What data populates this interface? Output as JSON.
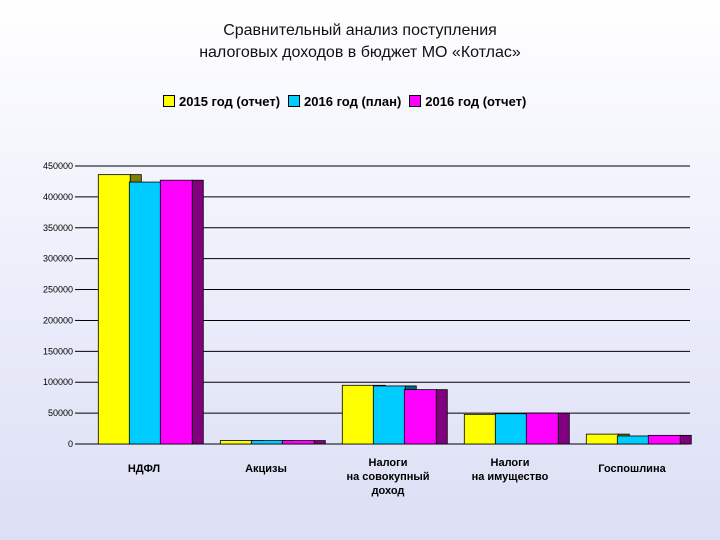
{
  "chart_data": {
    "type": "bar",
    "title": "Сравнительный анализ поступления налоговых доходов в бюджет МО «Котлас»",
    "title_lines": [
      "Сравнительный анализ поступления",
      "налоговых доходов в бюджет МО «Котлас»"
    ],
    "categories": [
      [
        "НДФЛ"
      ],
      [
        "Акцизы"
      ],
      [
        "Налоги",
        "на совокупный",
        "доход"
      ],
      [
        "Налоги",
        "на имущество"
      ],
      [
        "Госпошлина"
      ]
    ],
    "series": [
      {
        "name": "2015 год (отчет)",
        "color": "#ffff00",
        "side_color": "#808000",
        "values": [
          436000,
          5500,
          95000,
          48000,
          16000
        ]
      },
      {
        "name": "2016 год (план)",
        "color": "#00ccff",
        "side_color": "#006680",
        "values": [
          424000,
          5500,
          94000,
          49000,
          13000
        ]
      },
      {
        "name": "2016 год (отчет)",
        "color": "#ff00ff",
        "side_color": "#800080",
        "values": [
          427000,
          5500,
          88000,
          50000,
          14000
        ]
      }
    ],
    "yticks": [
      0,
      50000,
      100000,
      150000,
      200000,
      250000,
      300000,
      350000,
      400000,
      450000
    ],
    "ylim": [
      0,
      450000
    ],
    "grid": true,
    "legend_position": "top"
  }
}
